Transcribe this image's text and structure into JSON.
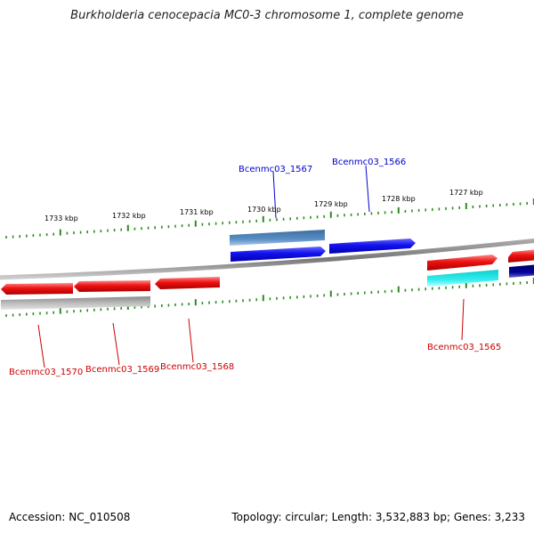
{
  "title": "Burkholderia cenocepacia MC0-3 chromosome 1, complete genome",
  "footer": {
    "accession": "Accession: NC_010508",
    "summary": "Topology: circular; Length: 3,532,883 bp; Genes: 3,233"
  },
  "scale_labels": [
    "1733 kbp",
    "1732 kbp",
    "1731 kbp",
    "1730 kbp",
    "1729 kbp",
    "1728 kbp",
    "1727 kbp"
  ],
  "genes": [
    {
      "locus": "Bcenmc03_1570",
      "label_color": "#cc0000"
    },
    {
      "locus": "Bcenmc03_1569",
      "label_color": "#cc0000"
    },
    {
      "locus": "Bcenmc03_1568",
      "label_color": "#cc0000"
    },
    {
      "locus": "Bcenmc03_1567",
      "label_color": "#0000cc"
    },
    {
      "locus": "Bcenmc03_1566",
      "label_color": "#0000cc"
    },
    {
      "locus": "Bcenmc03_1565",
      "label_color": "#cc0000"
    }
  ],
  "colors": {
    "backbone": "#888888",
    "tick": "#2e8b22",
    "gene_red": "#ee1111",
    "gene_blue": "#1111ee",
    "gene_steel": "#4a7fb5",
    "gene_cyan": "#22dddd",
    "gene_gray": "#bbbbbb",
    "gene_navy": "#000080"
  }
}
